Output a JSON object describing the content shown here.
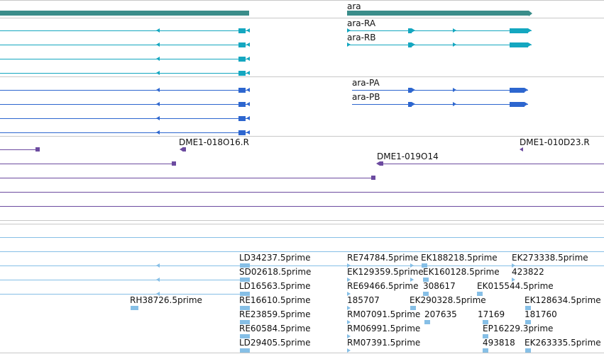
{
  "colors": {
    "gene_bar": "#3a8d8a",
    "teal": "#14a7c0",
    "blue": "#2d66cf",
    "purple": "#6c4ba0",
    "est": "#86bfe6",
    "divider": "#c8c8c8"
  },
  "tracks": {
    "gene": {
      "label": "ara"
    },
    "transcripts_a": {
      "labels": [
        "ara-RA",
        "ara-RB"
      ]
    },
    "transcripts_p": {
      "labels": [
        "ara-PA",
        "ara-PB"
      ]
    },
    "clones": {
      "labels": [
        "DME1-018O16.R",
        "DME1-010D23.R",
        "DME1-019O14"
      ]
    },
    "est": {
      "col1": [
        "LD34237.5prime",
        "SD02618.5prime",
        "LD16563.5prime",
        "RE16610.5prime",
        "RE23859.5prime",
        "RE60584.5prime",
        "LD29405.5prime"
      ],
      "left": [
        "RH38726.5prime"
      ],
      "col2": [
        "RE74784.5prime",
        "EK129359.5prime",
        "RE69466.5prime",
        "185707",
        "RM07091.5prime",
        "RM06991.5prime",
        "RM07391.5prime"
      ],
      "col3": [
        "EK188218.5prime",
        "EK160128.5prime",
        "308617",
        "EK290328.5prime",
        "207635"
      ],
      "col4": [
        "EK015544.5prime",
        "17169",
        "EP16229.3prime",
        "493818"
      ],
      "col5": [
        "EK273338.5prime",
        "423822",
        "EK128634.5prime",
        "181760",
        "EK263335.5prime"
      ]
    }
  }
}
